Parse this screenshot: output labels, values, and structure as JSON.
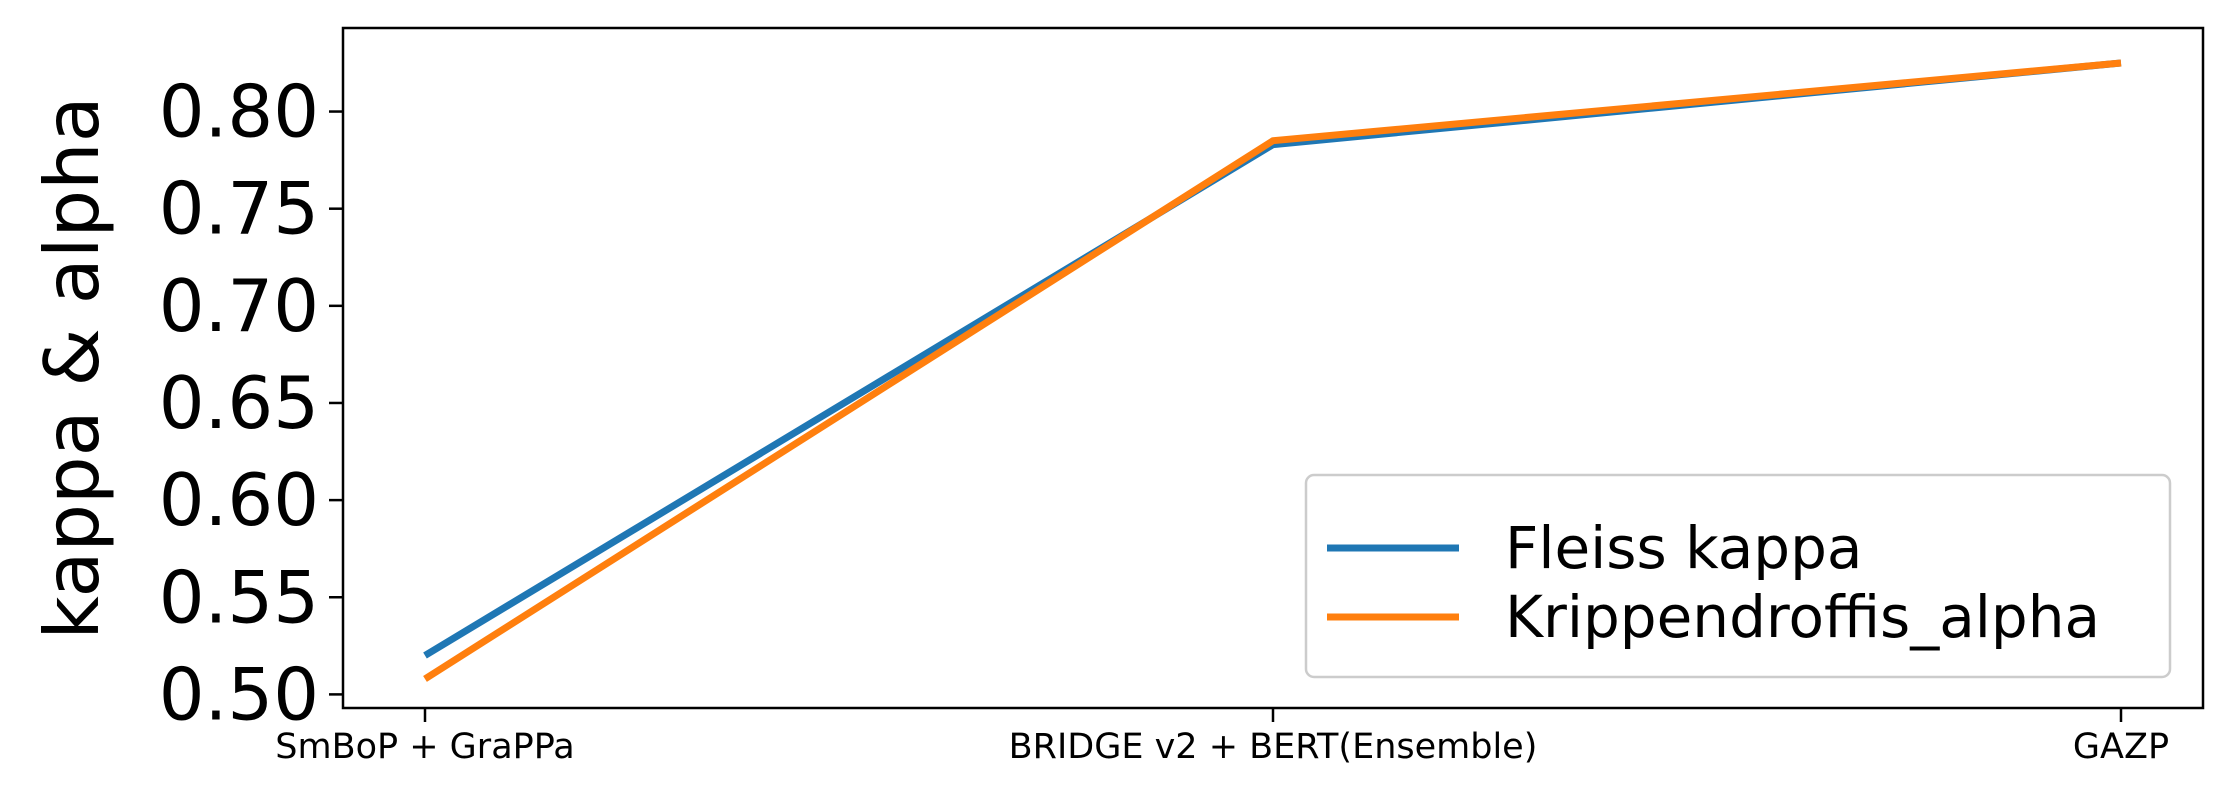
{
  "chart_data": {
    "type": "line",
    "categories": [
      "SmBoP + GraPPa",
      "BRIDGE v2 + BERT(Ensemble)",
      "GAZP"
    ],
    "series": [
      {
        "name": "Fleiss kappa",
        "values": [
          0.52,
          0.783,
          0.825
        ],
        "color": "#1f77b4"
      },
      {
        "name": "Krippendroffis_alpha",
        "values": [
          0.508,
          0.785,
          0.825
        ],
        "color": "#ff7f0e"
      }
    ],
    "xlabel": "",
    "ylabel": "kappa & alpha",
    "ylim": [
      0.493,
      0.843
    ],
    "yticks": [
      "0.50",
      "0.55",
      "0.60",
      "0.65",
      "0.70",
      "0.75",
      "0.80"
    ],
    "grid": false,
    "legend": "lower-right"
  }
}
